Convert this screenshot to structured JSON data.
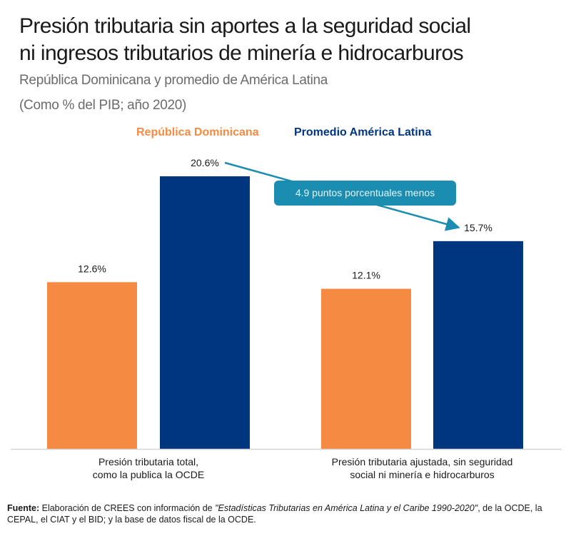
{
  "header": {
    "title_line1": "Presión tributaria sin aportes a la seguridad social",
    "title_line2": "ni ingresos tributarios de minería e hidrocarburos",
    "subtitle": "República Dominicana y promedio de América Latina",
    "units": "(Como % del PIB; año 2020)"
  },
  "colors": {
    "republica_dominicana": "#f58a42",
    "america_latina": "#003580",
    "annotation": "#1a8db1"
  },
  "chart_data": {
    "type": "bar",
    "title": "Presión tributaria sin aportes a la seguridad social ni ingresos tributarios de minería e hidrocarburos",
    "subtitle": "República Dominicana y promedio de América Latina",
    "ylabel": "% del PIB",
    "xlabel": "",
    "categories": [
      [
        "Presión tributaria total,",
        "como la publica la OCDE"
      ],
      [
        "Presión tributaria ajustada, sin seguridad",
        "social ni minería e hidrocarburos"
      ]
    ],
    "series": [
      {
        "name": "República Dominicana",
        "values": [
          12.6,
          12.1
        ],
        "labels": [
          "12.6%",
          "12.1%"
        ]
      },
      {
        "name": "Promedio América Latina",
        "values": [
          20.6,
          15.7
        ],
        "labels": [
          "20.6%",
          "15.7%"
        ]
      }
    ],
    "ylim": [
      0,
      20.6
    ],
    "grid": false,
    "legend": "top-center",
    "annotations": [
      {
        "text": "4.9 puntos porcentuales menos",
        "from": "20.6%",
        "to": "15.7%"
      }
    ]
  },
  "source": {
    "label": "Fuente:",
    "text_before": " Elaboración de CREES con información de ",
    "italic": "\"Estadísticas Tributarias en América Latina y el Caribe 1990-2020\"",
    "text_after": ", de la OCDE, la CEPAL, el CIAT y el BID; y la base de datos fiscal de la OCDE."
  }
}
